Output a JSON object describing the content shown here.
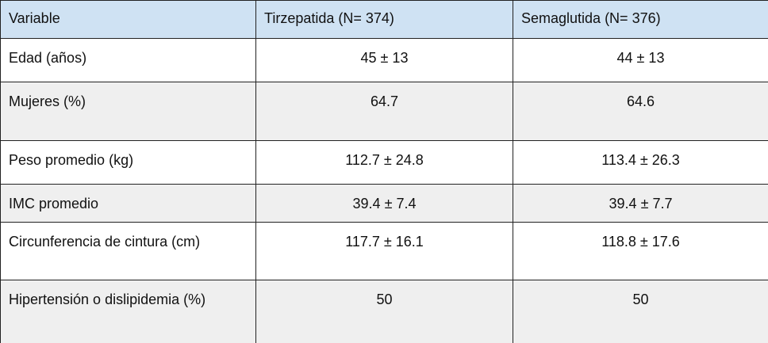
{
  "table": {
    "header": [
      "Variable",
      "Tirzepatida (N= 374)",
      "Semaglutida (N= 376)"
    ],
    "rows": [
      [
        "Edad (años)",
        "45 ± 13",
        "44 ± 13"
      ],
      [
        "Mujeres (%)",
        "64.7",
        "64.6"
      ],
      [
        "Peso promedio (kg)",
        "112.7 ± 24.8",
        "113.4 ± 26.3"
      ],
      [
        "IMC promedio",
        "39.4 ± 7.4",
        "39.4 ± 7.7"
      ],
      [
        "Circunferencia de cintura (cm)",
        "117.7 ± 16.1",
        "118.8 ± 17.6"
      ],
      [
        "Hipertensión o dislipidemia (%)",
        "50",
        "50"
      ]
    ]
  }
}
